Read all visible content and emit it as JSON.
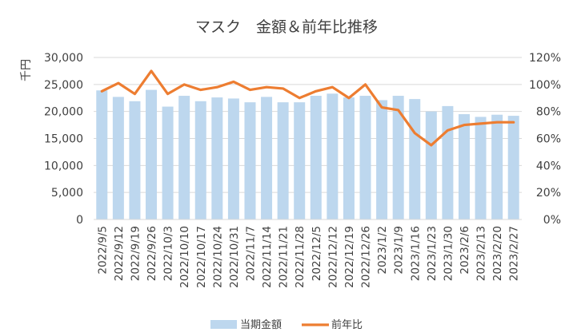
{
  "chart_data": {
    "type": "bar",
    "title": "マスク　金額＆前年比推移",
    "ylabel": "千円",
    "y2label": "",
    "categories": [
      "2022/9/5",
      "2022/9/12",
      "2022/9/19",
      "2022/9/26",
      "2022/10/3",
      "2022/10/10",
      "2022/10/17",
      "2022/10/24",
      "2022/10/31",
      "2022/11/7",
      "2022/11/14",
      "2022/11/21",
      "2022/11/28",
      "2022/12/5",
      "2022/12/12",
      "2022/12/19",
      "2022/12/26",
      "2023/1/2",
      "2023/1/9",
      "2023/1/16",
      "2023/1/23",
      "2023/1/30",
      "2023/2/6",
      "2023/2/13",
      "2023/2/20",
      "2023/2/27"
    ],
    "series": [
      {
        "name": "当期金額",
        "type": "bar",
        "axis": "left",
        "color": "#BDD7EE",
        "values": [
          23900,
          22700,
          21900,
          24000,
          20900,
          22900,
          21900,
          22600,
          22400,
          21700,
          22700,
          21700,
          21700,
          22900,
          23300,
          22600,
          22900,
          22100,
          22900,
          22300,
          20000,
          21000,
          19500,
          19000,
          19400,
          19200
        ]
      },
      {
        "name": "前年比",
        "type": "line",
        "axis": "right",
        "color": "#ED7D31",
        "values": [
          0.95,
          1.01,
          0.93,
          1.1,
          0.93,
          1.0,
          0.96,
          0.98,
          1.02,
          0.96,
          0.98,
          0.97,
          0.9,
          0.95,
          0.98,
          0.9,
          1.0,
          0.83,
          0.81,
          0.64,
          0.55,
          0.66,
          0.7,
          0.71,
          0.72,
          0.72
        ]
      }
    ],
    "ylim": [
      0,
      30000
    ],
    "y2lim": [
      0,
      1.2
    ],
    "yticks": [
      "0",
      "5,000",
      "10,000",
      "15,000",
      "20,000",
      "25,000",
      "30,000"
    ],
    "y2ticks": [
      "0%",
      "20%",
      "40%",
      "60%",
      "80%",
      "100%",
      "120%"
    ],
    "grid": true,
    "legend": "bottom-center"
  }
}
